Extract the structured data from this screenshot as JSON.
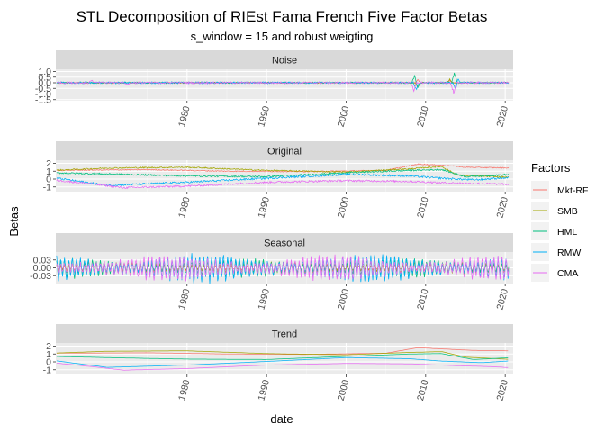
{
  "chart_data": {
    "type": "line",
    "title": "STL Decomposition of RIEst Fama French Five Factor Betas",
    "subtitle": "s_window = 15 and robust weigting",
    "xlabel": "date",
    "ylabel": "Betas",
    "x_ticks": [
      "1980",
      "1990",
      "2000",
      "2010",
      "2020"
    ],
    "x_range": [
      1963.5,
      2021
    ],
    "legend": {
      "title": "Factors",
      "position": "right",
      "entries": [
        {
          "name": "Mkt-RF",
          "color": "#F8766D"
        },
        {
          "name": "SMB",
          "color": "#A3A500"
        },
        {
          "name": "HML",
          "color": "#00BF7D"
        },
        {
          "name": "RMW",
          "color": "#00B0F6"
        },
        {
          "name": "CMA",
          "color": "#E76BF3"
        }
      ]
    },
    "panels": [
      {
        "label": "Noise",
        "ylim": [
          -1.6,
          1.2
        ],
        "y_ticks": [
          {
            "label": "1.0",
            "v": 1.0
          },
          {
            "label": "0.5",
            "v": 0.5
          },
          {
            "label": "0.0",
            "v": 0.0
          },
          {
            "label": "-0.5",
            "v": -0.5
          },
          {
            "label": "-1.0",
            "v": -1.0
          },
          {
            "label": "-1.5",
            "v": -1.5
          }
        ],
        "kind": "noise",
        "series": {
          "Mkt-RF": {
            "base": [
              [
                1963,
                0
              ],
              [
                2021,
                0
              ]
            ],
            "amp": 0.05,
            "spikes": [
              [
                2009,
                0.3
              ],
              [
                2013,
                0.25
              ]
            ]
          },
          "SMB": {
            "base": [
              [
                1963,
                0
              ],
              [
                2021,
                0
              ]
            ],
            "amp": 0.06,
            "spikes": [
              [
                2009,
                -0.4
              ],
              [
                2013,
                0.3
              ]
            ]
          },
          "HML": {
            "base": [
              [
                1963,
                0
              ],
              [
                2021,
                0
              ]
            ],
            "amp": 0.07,
            "spikes": [
              [
                2008.6,
                0.8
              ],
              [
                2013.6,
                1.1
              ],
              [
                2009,
                -0.5
              ]
            ]
          },
          "RMW": {
            "base": [
              [
                1963,
                0
              ],
              [
                2021,
                0
              ]
            ],
            "amp": 0.08,
            "spikes": [
              [
                2008.8,
                -0.7
              ],
              [
                2013.8,
                -0.9
              ],
              [
                2014,
                0.6
              ]
            ]
          },
          "CMA": {
            "base": [
              [
                1963,
                0
              ],
              [
                2021,
                0
              ]
            ],
            "amp": 0.08,
            "spikes": [
              [
                2008.5,
                -0.9
              ],
              [
                2013.5,
                -1.3
              ],
              [
                1968,
                0.3
              ],
              [
                1972.5,
                -0.3
              ]
            ]
          }
        }
      },
      {
        "label": "Original",
        "ylim": [
          -1.6,
          2.4
        ],
        "y_ticks": [
          {
            "label": "2",
            "v": 2
          },
          {
            "label": "1",
            "v": 1
          },
          {
            "label": "0",
            "v": 0
          },
          {
            "label": "-1",
            "v": -1
          }
        ],
        "kind": "original",
        "series": {
          "Mkt-RF": {
            "base": [
              [
                1963,
                1.1
              ],
              [
                1975,
                1.2
              ],
              [
                1985,
                1.0
              ],
              [
                1995,
                0.95
              ],
              [
                2005,
                1.1
              ],
              [
                2009,
                1.9
              ],
              [
                2013,
                1.7
              ],
              [
                2015,
                1.5
              ],
              [
                2021,
                1.4
              ]
            ],
            "amp": 0.06
          },
          "SMB": {
            "base": [
              [
                1963,
                1.1
              ],
              [
                1970,
                1.4
              ],
              [
                1980,
                1.5
              ],
              [
                1990,
                1.1
              ],
              [
                2000,
                0.9
              ],
              [
                2008,
                1.3
              ],
              [
                2012,
                1.6
              ],
              [
                2014,
                0.5
              ],
              [
                2021,
                0.2
              ]
            ],
            "amp": 0.08
          },
          "HML": {
            "base": [
              [
                1963,
                0.8
              ],
              [
                1972,
                0.6
              ],
              [
                1980,
                0.4
              ],
              [
                1990,
                0.3
              ],
              [
                2000,
                0.8
              ],
              [
                2008,
                1.1
              ],
              [
                2012,
                1.2
              ],
              [
                2015,
                0.3
              ],
              [
                2021,
                0.6
              ]
            ],
            "amp": 0.1
          },
          "RMW": {
            "base": [
              [
                1963,
                0.2
              ],
              [
                1970,
                -0.8
              ],
              [
                1980,
                -0.4
              ],
              [
                1990,
                0.1
              ],
              [
                2000,
                0.6
              ],
              [
                2008,
                0.4
              ],
              [
                2012,
                0.1
              ],
              [
                2016,
                -0.1
              ],
              [
                2021,
                0.2
              ]
            ],
            "amp": 0.12
          },
          "CMA": {
            "base": [
              [
                1963,
                -0.1
              ],
              [
                1968,
                -0.6
              ],
              [
                1972,
                -1.1
              ],
              [
                1980,
                -0.9
              ],
              [
                1990,
                -0.4
              ],
              [
                2000,
                -0.2
              ],
              [
                2008,
                -0.3
              ],
              [
                2013,
                -0.5
              ],
              [
                2018,
                -0.6
              ],
              [
                2021,
                -0.7
              ]
            ],
            "amp": 0.12
          }
        }
      },
      {
        "label": "Seasonal",
        "ylim": [
          -0.06,
          0.06
        ],
        "y_ticks": [
          {
            "label": "0.03",
            "v": 0.03
          },
          {
            "label": "0.00",
            "v": 0.0
          },
          {
            "label": "-0.03",
            "v": -0.03
          }
        ],
        "kind": "seasonal",
        "series": {
          "Mkt-RF": {
            "amp": 0.015
          },
          "SMB": {
            "amp": 0.02
          },
          "HML": {
            "amp": 0.03
          },
          "RMW": {
            "amp": 0.045
          },
          "CMA": {
            "amp": 0.04
          }
        }
      },
      {
        "label": "Trend",
        "ylim": [
          -1.6,
          2.4
        ],
        "y_ticks": [
          {
            "label": "2",
            "v": 2
          },
          {
            "label": "1",
            "v": 1
          },
          {
            "label": "0",
            "v": 0
          },
          {
            "label": "-1",
            "v": -1
          }
        ],
        "kind": "trend",
        "series": {
          "Mkt-RF": {
            "base": [
              [
                1963,
                1.1
              ],
              [
                1975,
                1.15
              ],
              [
                1985,
                1.0
              ],
              [
                1995,
                0.95
              ],
              [
                2005,
                1.1
              ],
              [
                2009,
                1.8
              ],
              [
                2013,
                1.6
              ],
              [
                2016,
                1.45
              ],
              [
                2021,
                1.4
              ]
            ]
          },
          "SMB": {
            "base": [
              [
                1963,
                1.1
              ],
              [
                1970,
                1.35
              ],
              [
                1980,
                1.4
              ],
              [
                1990,
                1.05
              ],
              [
                2000,
                0.9
              ],
              [
                2008,
                1.2
              ],
              [
                2012,
                1.3
              ],
              [
                2015,
                0.6
              ],
              [
                2021,
                0.3
              ]
            ]
          },
          "HML": {
            "base": [
              [
                1963,
                0.7
              ],
              [
                1972,
                0.5
              ],
              [
                1980,
                0.35
              ],
              [
                1990,
                0.3
              ],
              [
                2000,
                0.7
              ],
              [
                2008,
                1.0
              ],
              [
                2012,
                1.05
              ],
              [
                2016,
                0.3
              ],
              [
                2021,
                0.55
              ]
            ]
          },
          "RMW": {
            "base": [
              [
                1963,
                0.2
              ],
              [
                1970,
                -0.7
              ],
              [
                1980,
                -0.4
              ],
              [
                1990,
                0.05
              ],
              [
                2000,
                0.55
              ],
              [
                2008,
                0.4
              ],
              [
                2012,
                0.1
              ],
              [
                2017,
                -0.1
              ],
              [
                2021,
                0.15
              ]
            ]
          },
          "CMA": {
            "base": [
              [
                1963,
                -0.1
              ],
              [
                1968,
                -0.6
              ],
              [
                1972,
                -1.05
              ],
              [
                1980,
                -0.85
              ],
              [
                1990,
                -0.4
              ],
              [
                2000,
                -0.2
              ],
              [
                2008,
                -0.25
              ],
              [
                2013,
                -0.45
              ],
              [
                2018,
                -0.6
              ],
              [
                2021,
                -0.75
              ]
            ]
          }
        }
      }
    ]
  }
}
